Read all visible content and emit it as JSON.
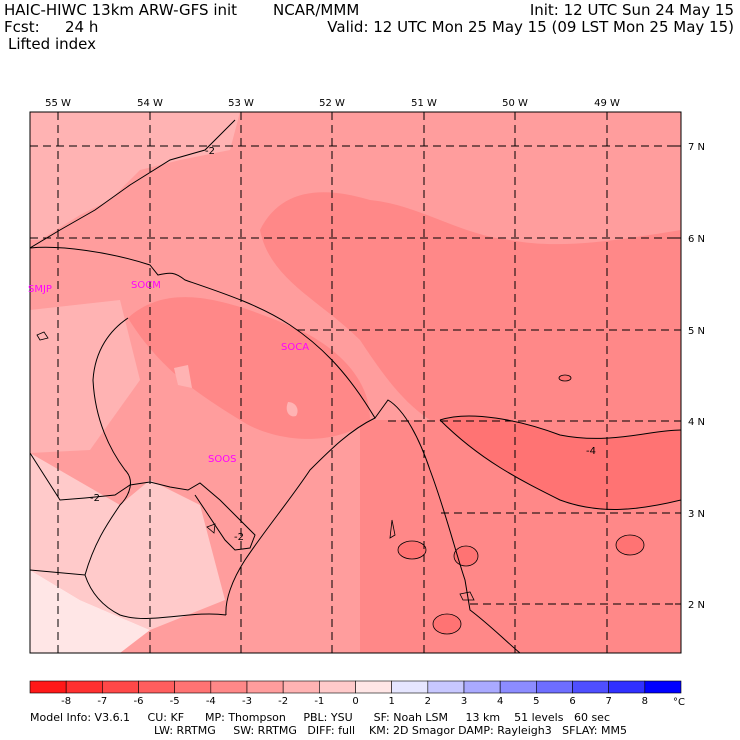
{
  "header": {
    "title": "HAIC-HIWC 13km ARW-GFS init",
    "org": "NCAR/MMM",
    "fcst_label": "Fcst:",
    "fcst_value": "24 h",
    "field": "Lifted index",
    "init": "Init: 12 UTC Sun 24 May 15",
    "valid": "Valid: 12 UTC Mon 25 May 15 (09 LST Mon 25 May 15)"
  },
  "map": {
    "lon_labels": [
      "55 W",
      "54 W",
      "53 W",
      "52 W",
      "51 W",
      "50 W",
      "49 W"
    ],
    "lat_labels": [
      "7 N",
      "6 N",
      "5 N",
      "4 N",
      "3 N",
      "2 N"
    ],
    "stations": [
      "SMJP",
      "SOCM",
      "SOCA",
      "SOOS"
    ],
    "contour_labels": [
      "-2",
      "-2",
      "-2",
      "-4"
    ]
  },
  "colorbar": {
    "tick_labels": [
      "-8",
      "-7",
      "-6",
      "-5",
      "-4",
      "-3",
      "-2",
      "-1",
      "0",
      "1",
      "2",
      "3",
      "4",
      "5",
      "6",
      "7",
      "8"
    ],
    "unit": "°C",
    "colors": [
      "#ff1818",
      "#ff3030",
      "#ff4848",
      "#ff5e5e",
      "#ff7373",
      "#ff8888",
      "#ff9d9d",
      "#ffb3b3",
      "#ffcaca",
      "#ffe6e6",
      "#e6e6ff",
      "#c8c8ff",
      "#aaaaff",
      "#8c8cff",
      "#6e6eff",
      "#4f4fff",
      "#3030ff",
      "#0000ff"
    ]
  },
  "footer": {
    "line1": "Model Info: V3.6.1     CU: KF      MP: Thompson     PBL: YSU      SF: Noah LSM     13 km    51 levels   60 sec",
    "line2": "LW: RRTMG     SW: RRTMG   DIFF: full    KM: 2D Smagor DAMP: Rayleigh3   SFLAY: MM5"
  }
}
